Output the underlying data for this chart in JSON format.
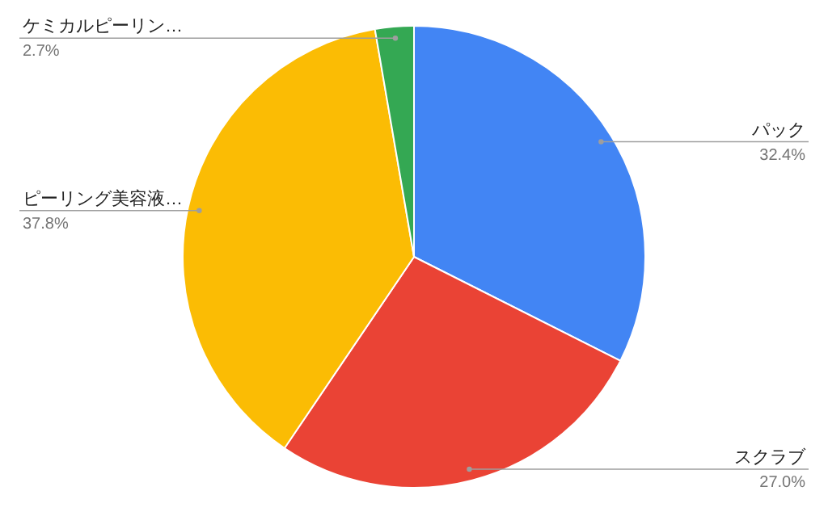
{
  "chart_data": {
    "type": "pie",
    "categories": [
      "パック",
      "スクラブ",
      "ピーリング美容液…",
      "ケミカルピーリン…"
    ],
    "values": [
      32.4,
      27.0,
      37.8,
      2.7
    ],
    "colors": [
      "#4285f4",
      "#ea4335",
      "#fbbc04",
      "#34a853"
    ],
    "value_labels": [
      "32.4%",
      "27.0%",
      "37.8%",
      "2.7%"
    ]
  }
}
